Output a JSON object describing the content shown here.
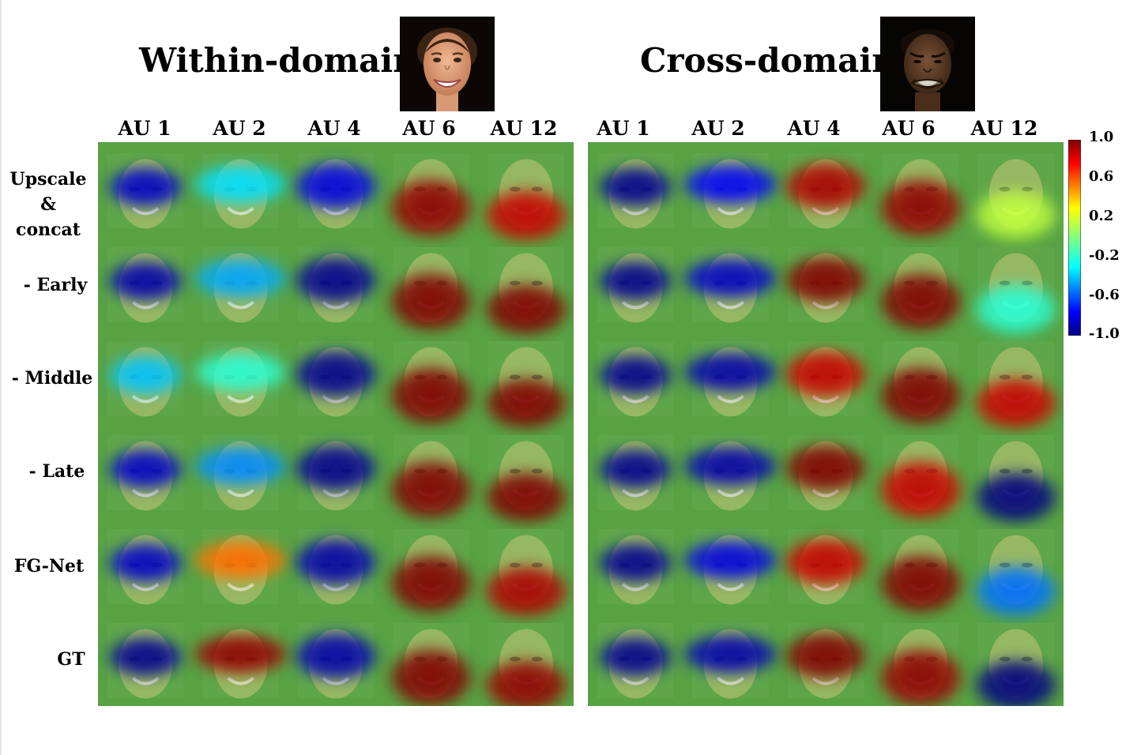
{
  "titles": {
    "within": "Within-domain",
    "cross": "Cross-domain"
  },
  "portraits": {
    "within": "smiling-woman-face",
    "cross": "grimacing-man-face"
  },
  "columns": [
    "AU 1",
    "AU 2",
    "AU 4",
    "AU 6",
    "AU 12"
  ],
  "rows": [
    "Upscale\n& concat",
    "- Early",
    "- Middle",
    "- Late",
    "FG-Net",
    "GT"
  ],
  "colorbar": {
    "ticks": [
      "1.0",
      "0.6",
      "0.2",
      "-0.2",
      "-0.6",
      "-1.0"
    ],
    "range": [
      -1.0,
      1.0
    ]
  },
  "colors": {
    "panel_bg": "#58a244",
    "skin_light": "#c2c478"
  },
  "heatmaps": {
    "within": [
      [
        -0.85,
        -0.35,
        -0.8,
        0.95,
        0.85
      ],
      [
        -0.9,
        -0.45,
        -0.95,
        1.0,
        1.0
      ],
      [
        -0.4,
        -0.2,
        -0.95,
        1.0,
        1.0
      ],
      [
        -0.85,
        -0.5,
        -0.95,
        1.0,
        1.0
      ],
      [
        -0.85,
        0.55,
        -0.9,
        1.0,
        0.9
      ],
      [
        -0.95,
        0.95,
        -0.9,
        1.0,
        0.95
      ]
    ],
    "cross": [
      [
        -0.95,
        -0.75,
        0.9,
        0.95,
        0.15
      ],
      [
        -0.95,
        -0.85,
        1.0,
        1.0,
        -0.2
      ],
      [
        -0.95,
        -0.9,
        0.85,
        1.0,
        0.85
      ],
      [
        -0.95,
        -0.9,
        1.0,
        0.85,
        -1.0
      ],
      [
        -0.95,
        -0.8,
        0.85,
        1.0,
        -0.55
      ],
      [
        -0.95,
        -0.9,
        1.0,
        0.95,
        -1.0
      ]
    ]
  }
}
